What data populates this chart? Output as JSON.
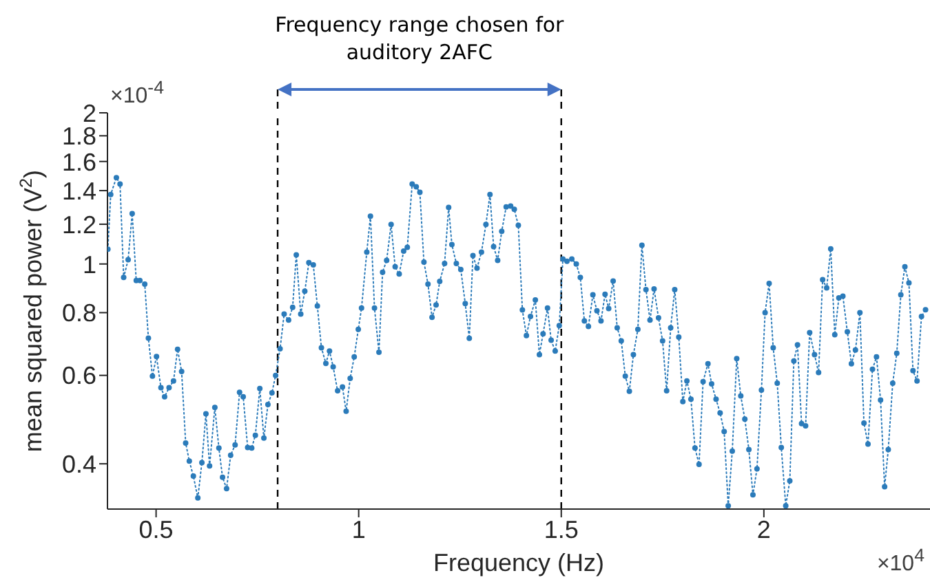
{
  "chart_data": {
    "type": "line",
    "xlabel": "Frequency (Hz)",
    "ylabel": "mean squared power (V$^{2}$)",
    "annotations": [
      "Frequency range chosen for auditory 2AFC",
      "×10$^{-4}$",
      "×10$^{4}$"
    ],
    "x": [
      0.381,
      0.388,
      0.402,
      0.411,
      0.42,
      0.431,
      0.441,
      0.451,
      0.46,
      0.472,
      0.481,
      0.491,
      0.501,
      0.512,
      0.521,
      0.532,
      0.543,
      0.553,
      0.563,
      0.573,
      0.582,
      0.592,
      0.603,
      0.613,
      0.623,
      0.632,
      0.645,
      0.655,
      0.664,
      0.674,
      0.684,
      0.695,
      0.706,
      0.715,
      0.726,
      0.736,
      0.745,
      0.756,
      0.766,
      0.776,
      0.786,
      0.795,
      0.806,
      0.816,
      0.827,
      0.837,
      0.846,
      0.857,
      0.867,
      0.877,
      0.888,
      0.898,
      0.908,
      0.919,
      0.928,
      0.937,
      0.948,
      0.96,
      0.969,
      0.979,
      0.989,
      0.999,
      1.007,
      1.02,
      1.029,
      1.039,
      1.05,
      1.059,
      1.069,
      1.08,
      1.09,
      1.1,
      1.111,
      1.12,
      1.132,
      1.142,
      1.151,
      1.161,
      1.171,
      1.181,
      1.191,
      1.2,
      1.212,
      1.222,
      1.23,
      1.241,
      1.252,
      1.263,
      1.273,
      1.282,
      1.292,
      1.303,
      1.314,
      1.324,
      1.333,
      1.343,
      1.353,
      1.364,
      1.375,
      1.384,
      1.394,
      1.404,
      1.414,
      1.424,
      1.436,
      1.446,
      1.455,
      1.466,
      1.475,
      1.485,
      1.495,
      1.504,
      1.514,
      1.526,
      1.537,
      1.547,
      1.557,
      1.567,
      1.578,
      1.588,
      1.598,
      1.608,
      1.617,
      1.628,
      1.638,
      1.648,
      1.658,
      1.668,
      1.678,
      1.689,
      1.699,
      1.709,
      1.719,
      1.729,
      1.74,
      1.75,
      1.76,
      1.77,
      1.78,
      1.79,
      1.8,
      1.81,
      1.82,
      1.83,
      1.84,
      1.85,
      1.862,
      1.871,
      1.882,
      1.892,
      1.902,
      1.912,
      1.922,
      1.933,
      1.943,
      1.953,
      1.963,
      1.973,
      1.983,
      1.994,
      2.003,
      2.013,
      2.023,
      2.033,
      2.043,
      2.054,
      2.064,
      2.074,
      2.083,
      2.093,
      2.103,
      2.113,
      2.125,
      2.135,
      2.145,
      2.155,
      2.165,
      2.175,
      2.185,
      2.195,
      2.206,
      2.216,
      2.226,
      2.237,
      2.247,
      2.257,
      2.268,
      2.278,
      2.288,
      2.298,
      2.307,
      2.318,
      2.328,
      2.338,
      2.348,
      2.358,
      2.368,
      2.378,
      2.389,
      2.399
    ],
    "series": [
      {
        "color": "#2b7bba",
        "values": [
          1.07,
          1.375,
          1.486,
          1.443,
          0.94,
          1.02,
          1.26,
          0.927,
          0.927,
          0.912,
          0.712,
          0.598,
          0.654,
          0.567,
          0.544,
          0.567,
          0.585,
          0.676,
          0.611,
          0.44,
          0.405,
          0.378,
          0.342,
          0.402,
          0.503,
          0.396,
          0.518,
          0.43,
          0.376,
          0.357,
          0.416,
          0.436,
          0.555,
          0.544,
          0.431,
          0.43,
          0.456,
          0.565,
          0.45,
          0.525,
          0.554,
          0.6,
          0.678,
          0.795,
          0.773,
          0.82,
          1.043,
          0.795,
          0.883,
          1.006,
          0.996,
          0.825,
          0.681,
          0.634,
          0.671,
          0.624,
          0.559,
          0.569,
          0.509,
          0.592,
          0.653,
          0.741,
          0.817,
          1.056,
          1.245,
          0.817,
          0.667,
          0.963,
          1.017,
          1.199,
          0.987,
          0.955,
          1.061,
          1.079,
          1.443,
          1.425,
          1.389,
          1.009,
          0.912,
          0.783,
          0.829,
          0.923,
          1.002,
          1.296,
          1.093,
          1.002,
          0.975,
          0.834,
          0.711,
          1.039,
          0.981,
          1.056,
          1.199,
          1.375,
          1.083,
          1.017,
          1.162,
          1.299,
          1.304,
          1.285,
          1.194,
          0.81,
          0.72,
          0.786,
          0.848,
          0.66,
          0.726,
          0.817,
          0.705,
          0.671,
          0.754,
          1.023,
          1.013,
          1.023,
          1.0,
          0.94,
          0.77,
          0.751,
          0.868,
          0.807,
          0.77,
          0.87,
          0.815,
          0.925,
          0.746,
          0.703,
          0.598,
          0.558,
          0.66,
          0.741,
          1.09,
          0.889,
          0.773,
          0.892,
          0.781,
          0.703,
          0.559,
          0.746,
          0.889,
          0.715,
          0.532,
          0.585,
          0.538,
          0.43,
          0.399,
          0.583,
          0.633,
          0.577,
          0.538,
          0.505,
          0.464,
          0.33,
          0.424,
          0.648,
          0.546,
          0.491,
          0.427,
          0.347,
          0.391,
          0.561,
          0.8,
          0.915,
          0.681,
          0.579,
          0.431,
          0.33,
          0.37,
          0.641,
          0.69,
          0.481,
          0.476,
          0.73,
          0.66,
          0.608,
          0.931,
          0.896,
          1.072,
          0.723,
          0.856,
          0.863,
          0.733,
          0.633,
          0.674,
          0.8,
          0.482,
          0.438,
          0.617,
          0.653,
          0.536,
          0.36,
          0.427,
          0.579,
          0.664,
          0.868,
          0.987,
          0.917,
          0.613,
          0.585,
          0.786,
          0.811
        ]
      }
    ],
    "xlim": [
      0.38,
      2.41
    ],
    "xticks": [
      0.5,
      1,
      1.5,
      2
    ],
    "ylim": [
      0.325,
      2
    ],
    "yticks": [
      0.4,
      0.6,
      0.8,
      1,
      1.2,
      1.4,
      1.6,
      1.8,
      2
    ],
    "log": "y",
    "marker": "circle",
    "line_style": "dotted",
    "ref_lines": [
      {
        "axis": "x",
        "value": 0.8,
        "color": "#000000",
        "line_style": "dashed"
      },
      {
        "axis": "x",
        "value": 1.5,
        "color": "#000000",
        "line_style": "dashed"
      }
    ]
  }
}
